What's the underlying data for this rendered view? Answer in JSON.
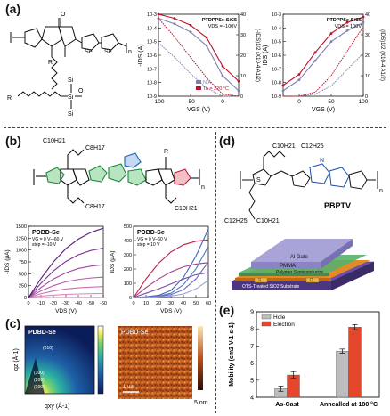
{
  "panels": {
    "a": {
      "letter": "(a)",
      "structure_labels": {
        "n": "n",
        "se": "Se",
        "r_top": "R",
        "r_bottom": "R",
        "si": "Si",
        "o": "O"
      },
      "chart_left": {
        "title": "PTDPPSe-SiC5",
        "condition": "VDS = -100V",
        "xlabel": "VGS (V)",
        "ylabel_left": "-IDS (A)",
        "ylabel_right": "(-IDS)1/2 (X10-4 A1/2)",
        "legend": [
          "N/A",
          "Ta = 220 °C"
        ]
      },
      "chart_right": {
        "title": "PTDPPSe-SiC5",
        "condition": "VDS = 100V",
        "xlabel": "VGS (V)",
        "ylabel_left": "IDS (A)",
        "ylabel_right": "(IDS)1/2 (X10-4 A1/2)"
      }
    },
    "b": {
      "letter": "(b)",
      "structure_labels": {
        "c10h21_top": "C10H21",
        "c8h17": "C8H17",
        "r": "R",
        "n": "n",
        "c8h17_b": "C8H17",
        "c10h21_bottom": "C10H21"
      },
      "chart_left": {
        "title": "PDBD-Se",
        "cond1": "VG = 0 V–-60 V",
        "cond2": "step = -10 V",
        "xlabel": "VDS (V)",
        "ylabel": "-IDS (μA)"
      },
      "chart_right": {
        "title": "PDBD-Se",
        "cond1": "VG = 0 V–60 V",
        "cond2": "step = 10 V",
        "xlabel": "VDS (V)",
        "ylabel": "IDS (μA)"
      }
    },
    "c": {
      "letter": "(c)",
      "giwaxs": {
        "title": "PDBD-Se",
        "xlabel": "qxy (Å-1)",
        "ylabel": "qz (Å-1)",
        "peaks": [
          "(010)",
          "(300)",
          "(200)",
          "(100)"
        ]
      },
      "afm": {
        "title": "PDBD-Se",
        "scalebar": "1 um",
        "colorbar_label": "5 nm"
      }
    },
    "d": {
      "letter": "(d)",
      "polymer_name": "PBPTV",
      "structure_labels": {
        "c10h21_top": "C10H21",
        "c12h25_top": "C12H25",
        "c12h25_bottom": "C12H25",
        "c10h21_bottom": "C10H21",
        "n": "n",
        "s": "S",
        "n_atom": "N"
      },
      "device_layers": [
        "Al Gate",
        "PMMA",
        "Polymer Semiconductor",
        "OTS-Treated SiO2 Substrate"
      ],
      "electrode_labels": {
        "source": "S",
        "drain": "D"
      }
    },
    "e": {
      "letter": "(e)",
      "ylabel": "Mobility (cm2 V-1 s-1)"
    }
  },
  "chart_data": [
    {
      "id": "a-left",
      "type": "line",
      "x": [
        -100,
        -75,
        -50,
        -25,
        0,
        25
      ],
      "xlim": [
        -100,
        25
      ],
      "xticks": [
        -100,
        -50,
        0
      ],
      "yscale": "log",
      "ylim": [
        1e-09,
        0.001
      ],
      "yticks": [
        "10-3",
        "10-4",
        "10-5",
        "10-6",
        "10-7",
        "10-8",
        "10-9"
      ],
      "y2lim": [
        0,
        40
      ],
      "y2ticks": [
        0,
        10,
        20,
        30,
        40
      ],
      "series": [
        {
          "name": "N/A",
          "color": "#7f7fb0",
          "log_values": [
            -3.3,
            -3.7,
            -4.3,
            -5.3,
            -7.5,
            -8.6
          ],
          "sqrt_values": [
            26,
            19,
            11,
            4,
            0,
            0
          ]
        },
        {
          "name": "Ta = 220 °C",
          "color": "#c0102a",
          "log_values": [
            -3.0,
            -3.3,
            -3.8,
            -4.7,
            -6.8,
            -7.9
          ],
          "sqrt_values": [
            38,
            29,
            19,
            9,
            1,
            0
          ]
        }
      ]
    },
    {
      "id": "a-right",
      "type": "line",
      "x": [
        -25,
        0,
        25,
        50,
        75,
        100
      ],
      "xlim": [
        -25,
        100
      ],
      "xticks": [
        0,
        50,
        100
      ],
      "yscale": "log",
      "ylim": [
        1e-09,
        0.001
      ],
      "yticks": [
        "10-3",
        "10-4",
        "10-5",
        "10-6",
        "10-7",
        "10-8",
        "10-9"
      ],
      "y2lim": [
        0,
        40
      ],
      "y2ticks": [
        0,
        10,
        20,
        30,
        40
      ],
      "series": [
        {
          "color": "#7f7fb0",
          "log_values": [
            -8.6,
            -7.8,
            -6.4,
            -5.0,
            -4.2,
            -3.6
          ],
          "sqrt_values": [
            0,
            0,
            1,
            5,
            13,
            21
          ]
        },
        {
          "color": "#c0102a",
          "log_values": [
            -8.2,
            -7.4,
            -5.8,
            -4.4,
            -3.6,
            -3.2
          ],
          "sqrt_values": [
            0,
            0,
            2,
            10,
            22,
            34
          ]
        }
      ]
    },
    {
      "id": "b-left",
      "type": "line",
      "x": [
        0,
        -10,
        -20,
        -30,
        -40,
        -50,
        -60
      ],
      "xticks": [
        0,
        -10,
        -20,
        -30,
        -40,
        -50,
        -60
      ],
      "xlim": [
        0,
        -60
      ],
      "ylim": [
        0,
        1500
      ],
      "yticks": [
        0,
        250,
        500,
        750,
        1000,
        1250,
        1500
      ],
      "series": [
        {
          "color": "#f0a2c8",
          "values": [
            0,
            2,
            3,
            4,
            5,
            6,
            7
          ]
        },
        {
          "color": "#e089bd",
          "values": [
            0,
            30,
            50,
            65,
            75,
            80,
            85
          ]
        },
        {
          "color": "#cc6fb3",
          "values": [
            0,
            80,
            140,
            180,
            205,
            220,
            230
          ]
        },
        {
          "color": "#b85aaa",
          "values": [
            0,
            140,
            250,
            330,
            380,
            410,
            430
          ]
        },
        {
          "color": "#9f47a0",
          "values": [
            0,
            210,
            390,
            520,
            610,
            660,
            690
          ]
        },
        {
          "color": "#7d2f90",
          "values": [
            0,
            300,
            560,
            760,
            900,
            990,
            1040
          ]
        },
        {
          "color": "#5a1c7d",
          "values": [
            0,
            400,
            750,
            1030,
            1230,
            1370,
            1460
          ]
        }
      ]
    },
    {
      "id": "b-right",
      "type": "line",
      "x": [
        0,
        10,
        20,
        30,
        40,
        50,
        60
      ],
      "xticks": [
        0,
        10,
        20,
        30,
        40,
        50,
        60
      ],
      "xlim": [
        0,
        60
      ],
      "ylim": [
        0,
        500
      ],
      "yticks": [
        0,
        100,
        200,
        300,
        400,
        500
      ],
      "series": [
        {
          "color": "#c21a4a",
          "values": [
            0,
            130,
            240,
            320,
            370,
            395,
            405
          ]
        },
        {
          "color": "#a83d87",
          "values": [
            0,
            70,
            130,
            180,
            215,
            235,
            245
          ]
        },
        {
          "color": "#7a4aa5",
          "values": [
            0,
            30,
            60,
            95,
            130,
            160,
            175
          ]
        },
        {
          "color": "#3c61b8",
          "values": [
            0,
            5,
            15,
            50,
            140,
            290,
            480
          ]
        },
        {
          "color": "#4a7ac2",
          "values": [
            0,
            4,
            10,
            30,
            90,
            200,
            360
          ]
        },
        {
          "color": "#6c6cc0",
          "values": [
            0,
            2,
            8,
            20,
            55,
            130,
            250
          ]
        },
        {
          "color": "#9aa0d6",
          "values": [
            0,
            1,
            4,
            10,
            25,
            60,
            120
          ]
        }
      ]
    },
    {
      "id": "e",
      "type": "bar",
      "categories": [
        "As-Cast",
        "Annealled at 180 °C"
      ],
      "series": [
        {
          "name": "Hole",
          "color": "#bdbdbd",
          "values": [
            4.5,
            6.7
          ],
          "errors": [
            0.15,
            0.12
          ]
        },
        {
          "name": "Electron",
          "color": "#e4472c",
          "values": [
            5.3,
            8.1
          ],
          "errors": [
            0.2,
            0.15
          ]
        }
      ],
      "ylim": [
        4,
        9
      ],
      "yticks": [
        4,
        5,
        6,
        7,
        8,
        9
      ],
      "ylabel": "Mobility (cm2 V-1 s-1)",
      "legend_position": "top-left"
    }
  ]
}
